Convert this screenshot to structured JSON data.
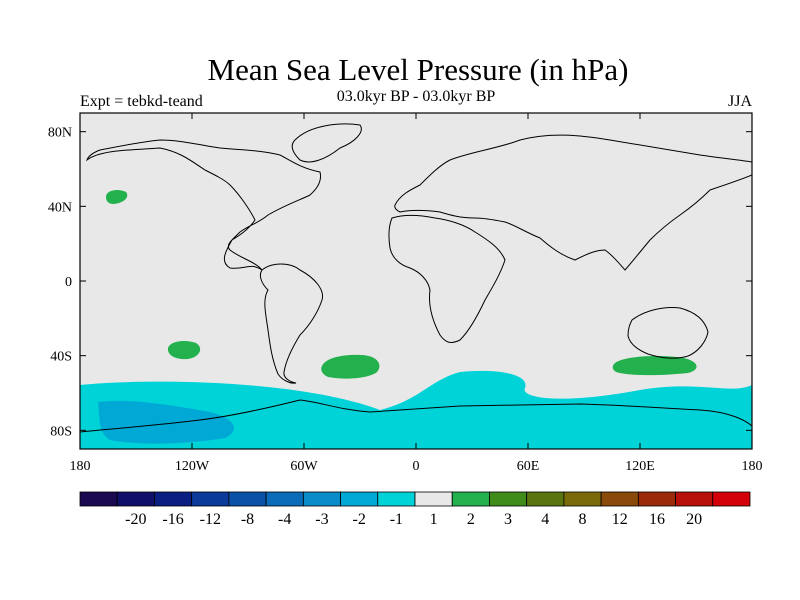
{
  "header": {
    "title": "Mean Sea Level Pressure (in hPa)",
    "subtitle": "03.0kyr BP - 03.0kyr BP",
    "experiment": "Expt = tebkd-teand",
    "season": "JJA"
  },
  "map": {
    "projection": "cylindrical-equidistant",
    "lon_range": [
      -180,
      180
    ],
    "lat_range": [
      -90,
      90
    ],
    "land_color": "#e8e8e8",
    "coastline_color": "#000000",
    "lat_ticks": [
      {
        "value": 80,
        "label": "80N"
      },
      {
        "value": 40,
        "label": "40N"
      },
      {
        "value": 0,
        "label": "0"
      },
      {
        "value": -40,
        "label": "40S"
      },
      {
        "value": -80,
        "label": "80S"
      }
    ],
    "lon_ticks": [
      {
        "value": -180,
        "label": "180"
      },
      {
        "value": -120,
        "label": "120W"
      },
      {
        "value": -60,
        "label": "60W"
      },
      {
        "value": 0,
        "label": "0"
      },
      {
        "value": 60,
        "label": "60E"
      },
      {
        "value": 120,
        "label": "120E"
      },
      {
        "value": 180,
        "label": "180"
      }
    ],
    "anomaly_regions": [
      {
        "name": "north-pacific-positive",
        "level": "1 to 2",
        "color": "#22b14c"
      },
      {
        "name": "south-pacific-positive",
        "level": "1 to 2",
        "color": "#22b14c"
      },
      {
        "name": "south-atlantic-positive",
        "level": "1 to 2",
        "color": "#22b14c"
      },
      {
        "name": "south-australia-positive",
        "level": "1 to 2",
        "color": "#22b14c"
      },
      {
        "name": "southern-ocean-negative",
        "level": "-2 to -1",
        "color": "#00d3d8"
      },
      {
        "name": "antarctic-negative",
        "level": "-3 to -2",
        "color": "#00a8d6"
      }
    ]
  },
  "colorbar": {
    "colors": [
      "#1a0a52",
      "#10106a",
      "#0b1f82",
      "#0a3a9a",
      "#0a52a8",
      "#0a6cb8",
      "#0a8cc8",
      "#00a8d6",
      "#00d3d8",
      "#e8e8e8",
      "#22b14c",
      "#3f8c1a",
      "#5a7410",
      "#7a6a0a",
      "#8a4a0a",
      "#9a2a0a",
      "#b8100a",
      "#d4000a"
    ],
    "labels": [
      "-20",
      "-16",
      "-12",
      "-8",
      "-4",
      "-3",
      "-2",
      "-1",
      "1",
      "2",
      "3",
      "4",
      "8",
      "12",
      "16",
      "20"
    ]
  }
}
